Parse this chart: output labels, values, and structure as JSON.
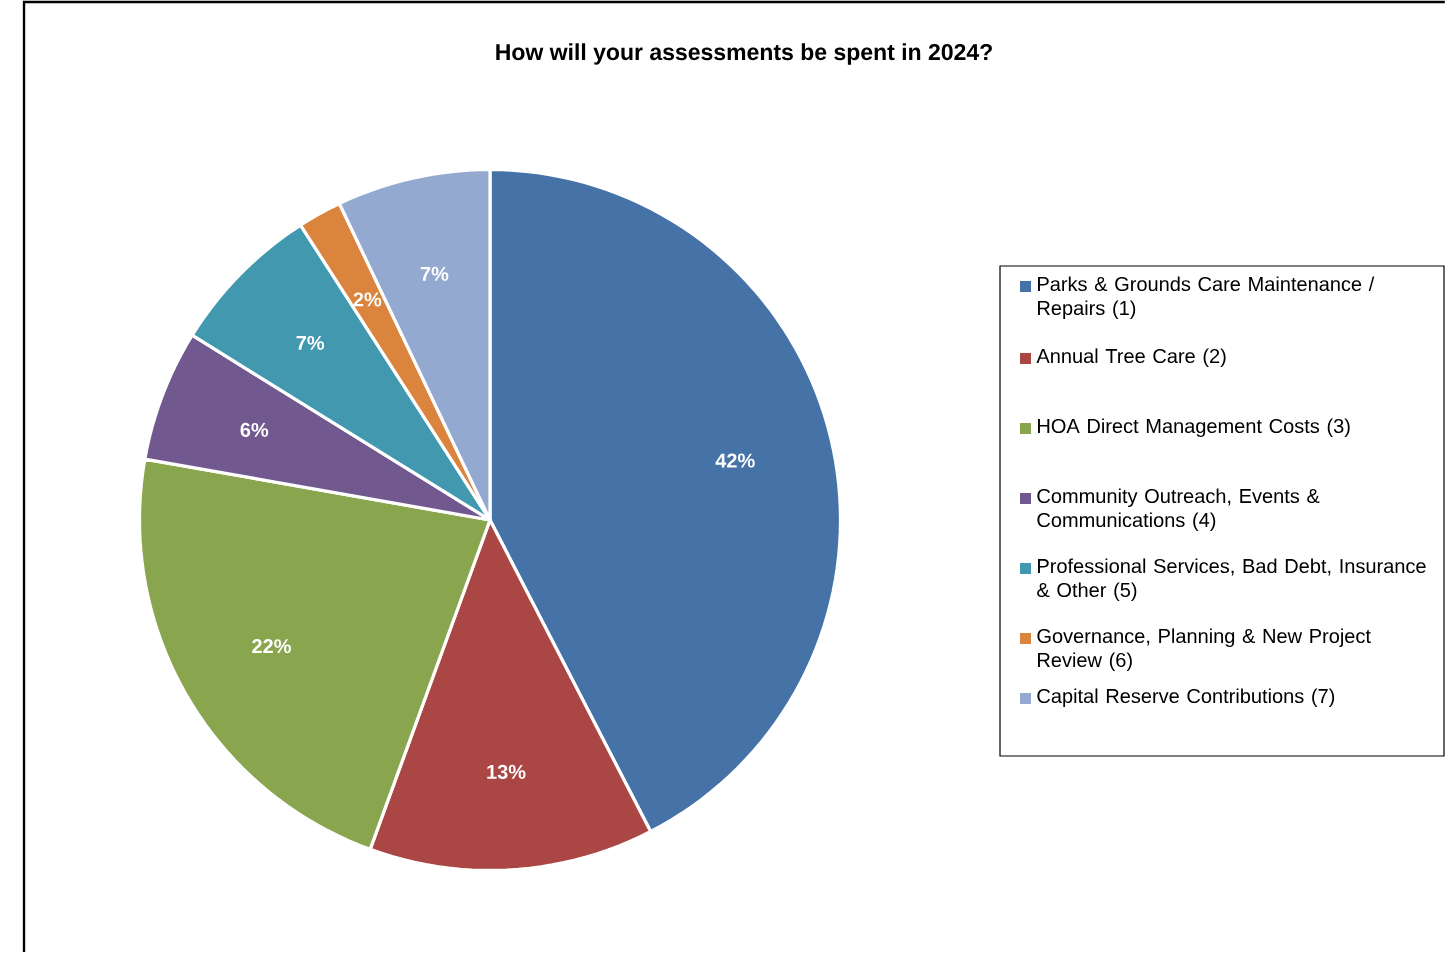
{
  "chart_data": {
    "type": "pie",
    "title": "How will your assessments be spent in 2024?",
    "categories": [
      "Parks & Grounds Care Maintenance / Repairs (1)",
      "Annual Tree Care (2)",
      "HOA Direct Management Costs (3)",
      "Community Outreach, Events & Communications (4)",
      "Professional Services, Bad Debt, Insurance & Other (5)",
      "Governance, Planning & New Project Review (6)",
      "Capital Reserve Contributions (7)"
    ],
    "values": [
      42,
      13,
      22,
      6,
      7,
      2,
      7
    ],
    "value_labels": [
      "42%",
      "13%",
      "22%",
      "6%",
      "7%",
      "2%",
      "7%"
    ],
    "colors": [
      "#4572a7",
      "#aa4643",
      "#89a54e",
      "#71588f",
      "#4198af",
      "#db843d",
      "#93a9cf"
    ],
    "legend": "right"
  }
}
